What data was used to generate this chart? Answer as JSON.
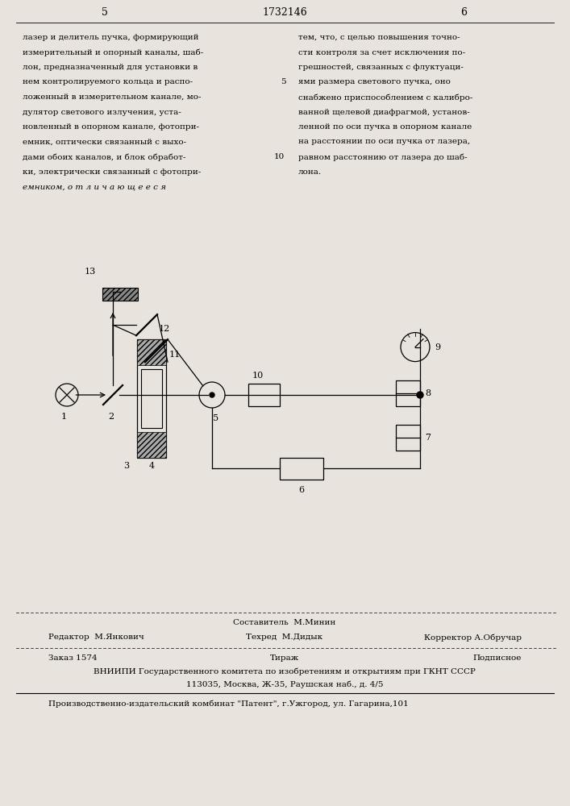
{
  "bg_color": "#e8e4dd",
  "header_page_num_left": "5",
  "header_patent_num": "1732146",
  "header_page_num_right": "6",
  "left_col_text": [
    "лазер и делитель пучка, формирующий",
    "измерительный и опорный каналы, шаб-",
    "лон, предназначенный для установки в",
    "нем контролируемого кольца и распо-",
    "ложенный в измерительном канале, мо-",
    "дулятор светового излучения, уста-",
    "новленный в опорном канале, фотопри-",
    "емник, оптически связанный с выхо-",
    "дами обоих каналов, и блок обработ-",
    "ки, электрически связанный с фотопри-",
    "емником, о т л и ч а ю щ е е с я"
  ],
  "right_col_text": [
    "тем, что, с целью повышения точно-",
    "сти контроля за счет исключения по-",
    "грешностей, связанных с флуктуаци-",
    "ями размера светового пучка, оно",
    "снабжено приспособлением с калибро-",
    "ванной щелевой диафрагмой, установ-",
    "ленной по оси пучка в опорном канале",
    "на расстоянии по оси пучка от лазера,",
    "равном расстоянию от лазера до шаб-",
    "лона."
  ],
  "footer_compositor": "Составитель  М.Минин",
  "footer_editor_label": "Редактор  М.Янкович",
  "footer_techred_label": "Техред  М.Дидык",
  "footer_corrector_label": "Корректор А.Обручар",
  "footer_order": "Заказ 1574",
  "footer_tirazh": "Тираж",
  "footer_podpisnoe": "Подписное",
  "footer_vniiipi": "ВНИИПИ Государственного комитета по изобретениям и открытиям при ГКНТ СССР",
  "footer_address": "113035, Москва, Ж-35, Раушская наб., д. 4/5",
  "footer_publisher": "Производственно-издательский комбинат \"Патент\", г.Ужгород, ул. Гагарина,101"
}
